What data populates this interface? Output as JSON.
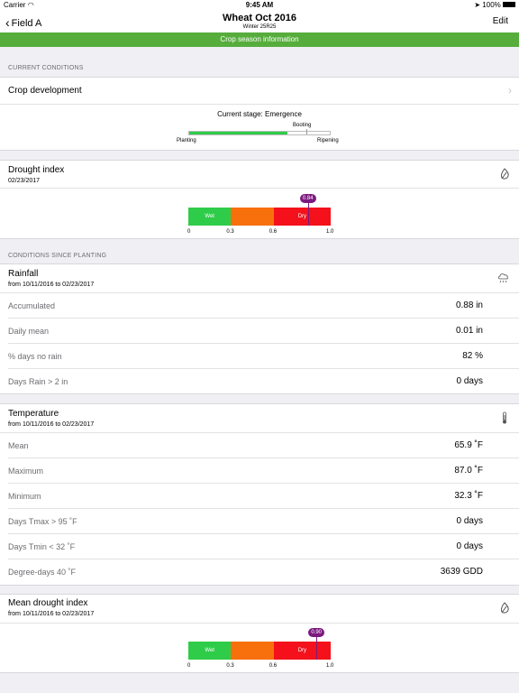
{
  "status_bar": {
    "carrier": "Carrier",
    "time": "9:45 AM",
    "battery": "100%"
  },
  "nav": {
    "back_label": "Field A",
    "title": "Wheat Oct 2016",
    "subtitle": "Winter 25R25",
    "edit_label": "Edit"
  },
  "banner": {
    "text": "Crop season information"
  },
  "current_conditions": {
    "header": "CURRENT CONDITIONS",
    "crop_development": {
      "label": "Crop development",
      "stage_text": "Current stage: Emergence",
      "progress": 0.7,
      "labels": {
        "start": "Planting",
        "mid": "Booting",
        "end": "Ripening"
      }
    },
    "drought_index": {
      "title": "Drought index",
      "date": "02/23/2017",
      "value": 0.84,
      "value_label": "0.84",
      "segments": [
        {
          "label": "Wet",
          "from": 0,
          "to": 0.3,
          "color": "#2fcc4a"
        },
        {
          "label": "",
          "from": 0.3,
          "to": 0.6,
          "color": "#f7700c"
        },
        {
          "label": "Dry",
          "from": 0.6,
          "to": 1.0,
          "color": "#f4111b"
        }
      ],
      "ticks": [
        "0",
        "0.3",
        "0.6",
        "1.0"
      ]
    }
  },
  "since_planting": {
    "header": "CONDITIONS SINCE PLANTING",
    "rainfall": {
      "title": "Rainfall",
      "range": "from 10/11/2016 to 02/23/2017",
      "icon": "rain-cloud-icon",
      "rows": [
        {
          "label": "Accumulated",
          "value": "0.88 in"
        },
        {
          "label": "Daily mean",
          "value": "0.01 in"
        },
        {
          "label": "% days no rain",
          "value": "82 %"
        },
        {
          "label": "Days Rain > 2 in",
          "value": "0 days"
        }
      ]
    },
    "temperature": {
      "title": "Temperature",
      "range": "from 10/11/2016 to 02/23/2017",
      "icon": "thermometer-icon",
      "rows": [
        {
          "label": "Mean",
          "value": "65.9 ˚F"
        },
        {
          "label": "Maximum",
          "value": "87.0 ˚F"
        },
        {
          "label": "Minimum",
          "value": "32.3 ˚F"
        },
        {
          "label": "Days Tmax > 95 ˚F",
          "value": "0 days"
        },
        {
          "label": "Days Tmin < 32 ˚F",
          "value": "0 days"
        },
        {
          "label": "Degree-days 40 ˚F",
          "value": "3639 GDD"
        }
      ]
    },
    "mean_drought": {
      "title": "Mean drought index",
      "range": "from 10/11/2016 to 02/23/2017",
      "value": 0.9,
      "value_label": "0.90",
      "segments": [
        {
          "label": "Wet",
          "from": 0,
          "to": 0.3,
          "color": "#2fcc4a"
        },
        {
          "label": "",
          "from": 0.3,
          "to": 0.6,
          "color": "#f7700c"
        },
        {
          "label": "Dry",
          "from": 0.6,
          "to": 1.0,
          "color": "#f4111b"
        }
      ],
      "ticks": [
        "0",
        "0.3",
        "0.6",
        "1.0"
      ]
    }
  }
}
